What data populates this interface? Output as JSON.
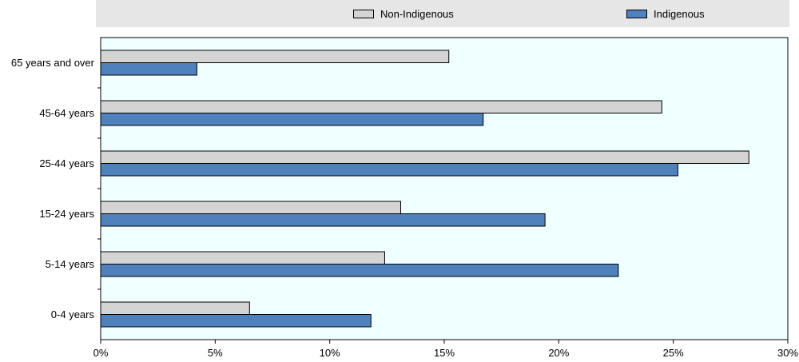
{
  "chart_data": {
    "type": "bar",
    "orientation": "horizontal",
    "categories": [
      "65 years and over",
      "45-64 years",
      "25-44 years",
      "15-24 years",
      "5-14 years",
      "0-4 years"
    ],
    "series": [
      {
        "name": "Non-Indigenous",
        "color": "#d4d4d4",
        "values": [
          15.2,
          24.5,
          28.3,
          13.1,
          12.4,
          6.5
        ]
      },
      {
        "name": "Indigenous",
        "color": "#4f81bd",
        "values": [
          4.2,
          16.7,
          25.2,
          19.4,
          22.6,
          11.8
        ]
      }
    ],
    "xlim": [
      0,
      30
    ],
    "x_ticks": [
      "0%",
      "5%",
      "10%",
      "15%",
      "20%",
      "25%",
      "30%"
    ],
    "x_tick_values": [
      0,
      5,
      10,
      15,
      20,
      25,
      30
    ],
    "plot_background": "#f0ffff",
    "legend_background": "#e6e6e6",
    "legend_position": "top",
    "grid": false
  }
}
